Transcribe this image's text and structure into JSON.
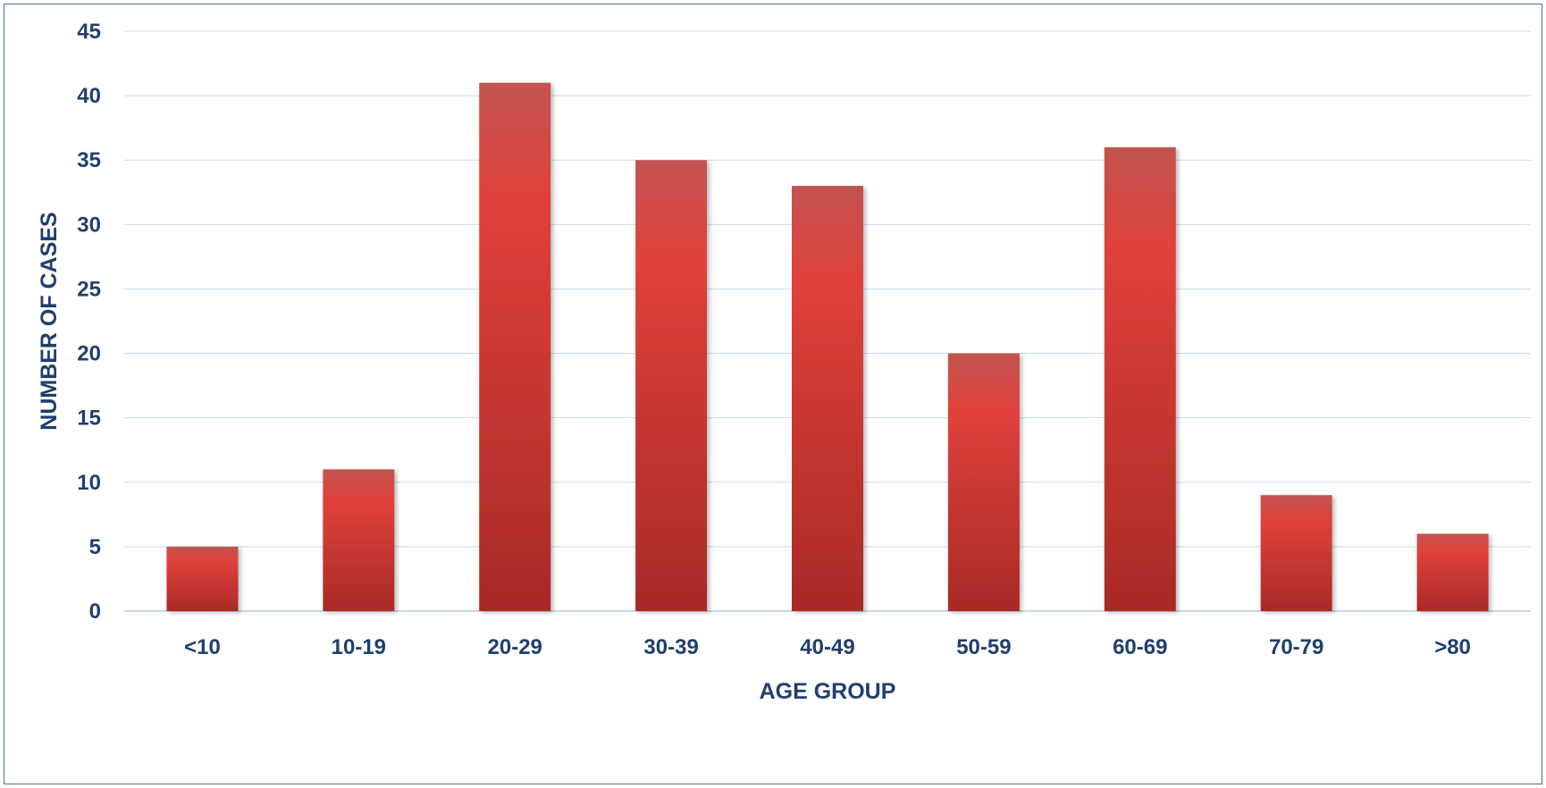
{
  "chart_data": {
    "type": "bar",
    "title": "",
    "xlabel": "AGE GROUP",
    "ylabel": "NUMBER OF CASES",
    "categories": [
      "<10",
      "10-19",
      "20-29",
      "30-39",
      "40-49",
      "50-59",
      "60-69",
      "70-79",
      ">80"
    ],
    "values": [
      5,
      11,
      41,
      35,
      33,
      20,
      36,
      9,
      6
    ],
    "ylim": [
      0,
      45
    ],
    "yticks": [
      0,
      5,
      10,
      15,
      20,
      25,
      30,
      35,
      40,
      45
    ],
    "grid": true,
    "legend": "none",
    "colors": {
      "bar": "#c8302c",
      "bar_light": "#e0413b",
      "bar_dark": "#a82a27",
      "text": "#1f3f6e",
      "grid": "#c9d9ea",
      "frame": "#4f6f9e"
    }
  }
}
